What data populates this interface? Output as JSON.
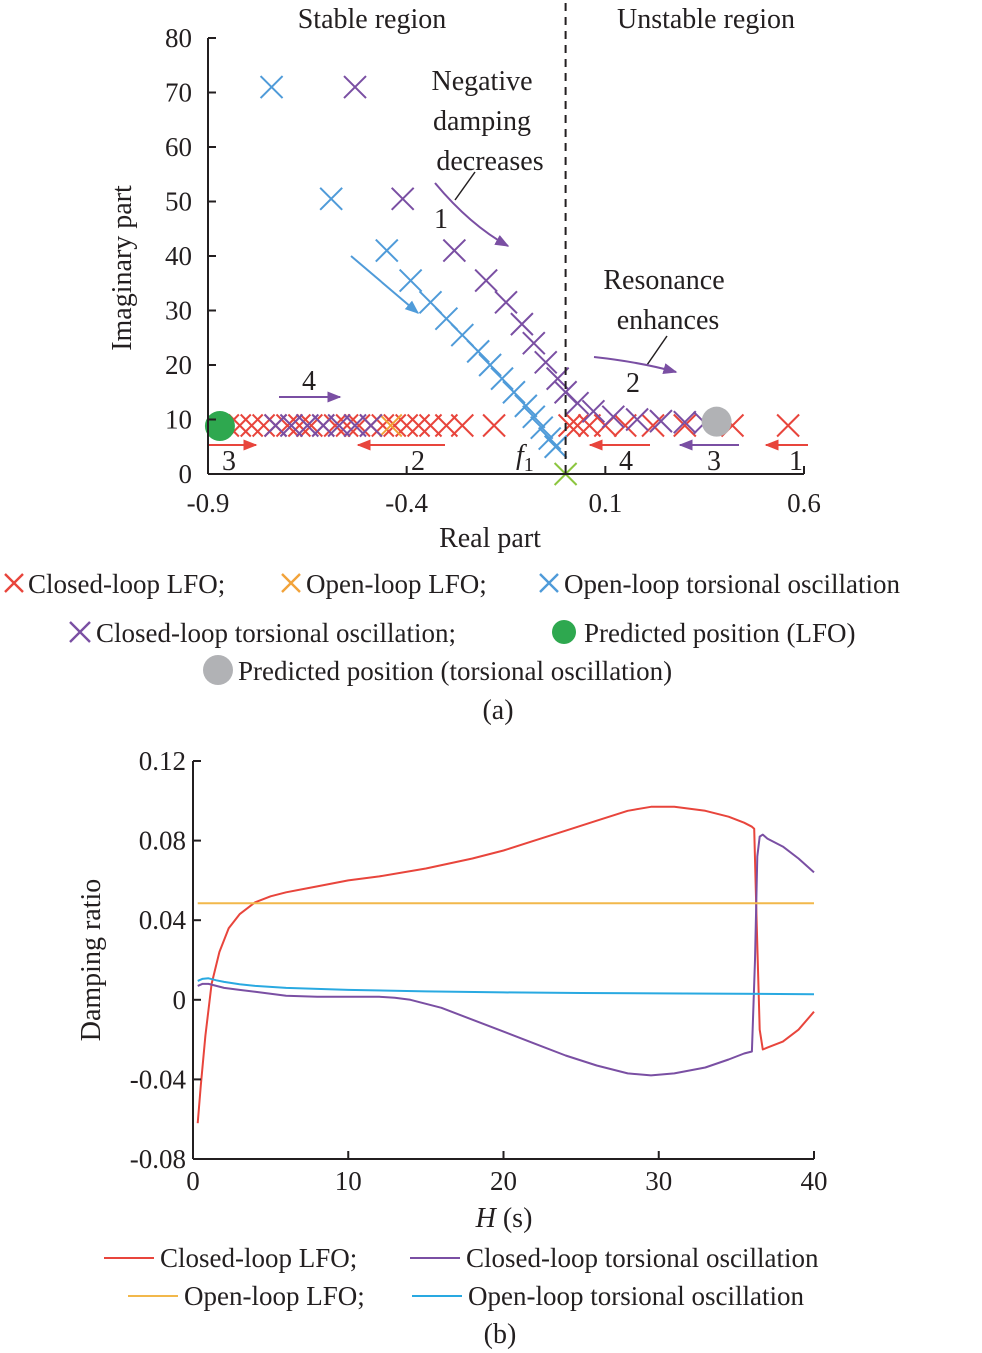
{
  "chart_data": [
    {
      "id": "a",
      "type": "scatter",
      "caption": "(a)",
      "xlabel": "Real part",
      "ylabel": "Imaginary part",
      "xlim": [
        -0.9,
        0.6
      ],
      "ylim": [
        0,
        80
      ],
      "xticks": [
        -0.9,
        -0.4,
        0.1,
        0.6
      ],
      "xtick_labels": [
        "-0.9",
        "-0.4",
        "0.1",
        "0.6"
      ],
      "yticks": [
        0,
        10,
        20,
        30,
        40,
        50,
        60,
        70,
        80
      ],
      "ytick_labels": [
        "0",
        "10",
        "20",
        "30",
        "40",
        "50",
        "60",
        "70",
        "80"
      ],
      "grid": false,
      "boundary_x": 0,
      "region_labels": {
        "stable": "Stable region",
        "unstable": "Unstable region"
      },
      "annotations": {
        "negative_damping": [
          "Negative",
          "damping",
          "decreases"
        ],
        "resonance": [
          "Resonance",
          "enhances"
        ],
        "f1_main": "f",
        "f1_sub": "1"
      },
      "arrow_numbers": {
        "purple_1": "1",
        "purple_2": "2",
        "purple_3": "3",
        "purple_4": "4",
        "red_1": "1",
        "red_2": "2",
        "red_3": "3",
        "red_4": "4"
      },
      "series": [
        {
          "name": "Closed-loop LFO",
          "marker": "x",
          "color": "#e8453c",
          "points": [
            [
              0.56,
              8.9
            ],
            [
              0.42,
              8.9
            ],
            [
              0.3,
              8.9
            ],
            [
              0.22,
              8.9
            ],
            [
              0.15,
              8.9
            ],
            [
              0.1,
              8.9
            ],
            [
              0.06,
              8.9
            ],
            [
              0.03,
              8.9
            ],
            [
              0.01,
              8.9
            ],
            [
              -0.18,
              8.9
            ],
            [
              -0.26,
              8.9
            ],
            [
              -0.3,
              8.9
            ],
            [
              -0.34,
              8.9
            ],
            [
              -0.37,
              8.9
            ],
            [
              -0.4,
              8.9
            ],
            [
              -0.43,
              8.9
            ],
            [
              -0.46,
              8.9
            ],
            [
              -0.49,
              8.9
            ],
            [
              -0.52,
              8.9
            ],
            [
              -0.55,
              8.9
            ],
            [
              -0.58,
              8.9
            ],
            [
              -0.61,
              8.9
            ],
            [
              -0.64,
              8.9
            ],
            [
              -0.67,
              8.9
            ],
            [
              -0.7,
              8.9
            ],
            [
              -0.73,
              8.9
            ],
            [
              -0.76,
              8.9
            ],
            [
              -0.79,
              8.9
            ],
            [
              -0.82,
              8.9
            ],
            [
              -0.85,
              8.9
            ]
          ]
        },
        {
          "name": "Open-loop LFO",
          "marker": "x",
          "color": "#f2a33a",
          "points": [
            [
              -0.44,
              8.9
            ]
          ]
        },
        {
          "name": "Open-loop torsional oscillation",
          "marker": "x",
          "color": "#4f9bd9",
          "points": [
            [
              -0.74,
              71
            ],
            [
              -0.59,
              50.5
            ],
            [
              -0.45,
              41
            ],
            [
              -0.39,
              35.5
            ],
            [
              -0.34,
              31.5
            ],
            [
              -0.3,
              28.5
            ],
            [
              -0.26,
              25.5
            ],
            [
              -0.22,
              22.5
            ],
            [
              -0.19,
              20
            ],
            [
              -0.16,
              17.5
            ],
            [
              -0.13,
              15
            ],
            [
              -0.1,
              12.5
            ],
            [
              -0.08,
              10.5
            ],
            [
              -0.06,
              8.5
            ],
            [
              -0.04,
              6.5
            ],
            [
              -0.025,
              5
            ]
          ]
        },
        {
          "name": "Closed-loop torsional oscillation",
          "marker": "x",
          "color": "#7a4fa3",
          "points": [
            [
              -0.53,
              71
            ],
            [
              -0.41,
              50.5
            ],
            [
              -0.28,
              41
            ],
            [
              -0.2,
              35.5
            ],
            [
              -0.15,
              31.5
            ],
            [
              -0.11,
              27.5
            ],
            [
              -0.08,
              24
            ],
            [
              -0.05,
              20.5
            ],
            [
              -0.02,
              17.5
            ],
            [
              0.0,
              15
            ],
            [
              0.03,
              13
            ],
            [
              0.07,
              11.5
            ],
            [
              0.12,
              10.5
            ],
            [
              0.18,
              10
            ],
            [
              0.24,
              9.7
            ],
            [
              0.3,
              9.5
            ],
            [
              0.35,
              9.4
            ],
            [
              -0.49,
              8.9
            ],
            [
              -0.53,
              8.9
            ],
            [
              -0.57,
              8.9
            ],
            [
              -0.61,
              8.9
            ],
            [
              -0.65,
              8.9
            ],
            [
              -0.69,
              8.9
            ],
            [
              -0.73,
              8.9
            ]
          ]
        },
        {
          "name": "Predicted position (LFO)",
          "marker": "circle",
          "color": "#2ea84f",
          "points": [
            [
              -0.87,
              8.8
            ]
          ]
        },
        {
          "name": "Predicted position (torsional oscillation)",
          "marker": "circle",
          "color": "#b1b2b5",
          "points": [
            [
              0.38,
              9.6
            ]
          ]
        },
        {
          "name": "",
          "marker": "x",
          "color": "#8cc63f",
          "points": [
            [
              0,
              0
            ]
          ]
        }
      ],
      "legend_rows": [
        [
          "Closed-loop LFO;",
          "Open-loop LFO;",
          "Open-loop torsional oscillation"
        ],
        [
          "Closed-loop torsional oscillation;",
          "Predicted position (LFO)"
        ],
        [
          "Predicted position (torsional oscillation)"
        ]
      ]
    },
    {
      "id": "b",
      "type": "line",
      "caption": "(b)",
      "xlabel_main": "H",
      "xlabel_unit": " (s)",
      "ylabel": "Damping ratio",
      "xlim": [
        0,
        40
      ],
      "ylim": [
        -0.08,
        0.12
      ],
      "xticks": [
        0,
        10,
        20,
        30,
        40
      ],
      "xtick_labels": [
        "0",
        "10",
        "20",
        "30",
        "40"
      ],
      "yticks": [
        -0.08,
        -0.04,
        0,
        0.04,
        0.08,
        0.12
      ],
      "ytick_labels": [
        "-0.08",
        "-0.04",
        "0",
        "0.04",
        "0.08",
        "0.12"
      ],
      "grid": false,
      "series": [
        {
          "name": "Closed-loop LFO",
          "color": "#e8453c",
          "x": [
            0.3,
            0.5,
            0.8,
            1.2,
            1.7,
            2.3,
            3,
            4,
            5,
            6,
            8,
            10,
            12,
            15,
            18,
            20,
            22,
            24,
            26,
            28,
            29.5,
            31,
            33,
            34.5,
            35.5,
            36,
            36.15,
            36.3,
            36.5,
            36.7,
            37,
            38,
            39,
            40
          ],
          "y": [
            -0.062,
            -0.043,
            -0.018,
            0.008,
            0.024,
            0.036,
            0.043,
            0.049,
            0.052,
            0.054,
            0.057,
            0.06,
            0.062,
            0.066,
            0.071,
            0.075,
            0.08,
            0.085,
            0.09,
            0.095,
            0.097,
            0.097,
            0.095,
            0.092,
            0.089,
            0.087,
            0.086,
            0.04,
            -0.015,
            -0.025,
            -0.024,
            -0.021,
            -0.015,
            -0.006
          ]
        },
        {
          "name": "Closed-loop torsional oscillation",
          "color": "#7a4fa3",
          "x": [
            0.3,
            0.6,
            1,
            1.5,
            2,
            3,
            4,
            5,
            6,
            8,
            10,
            12,
            13,
            14,
            16,
            18,
            20,
            22,
            24,
            26,
            28,
            29.5,
            31,
            33,
            34.5,
            35.5,
            36,
            36.2,
            36.35,
            36.5,
            36.7,
            37,
            38,
            39,
            40
          ],
          "y": [
            0.007,
            0.008,
            0.008,
            0.007,
            0.006,
            0.005,
            0.004,
            0.003,
            0.002,
            0.0015,
            0.0015,
            0.0015,
            0.001,
            0,
            -0.004,
            -0.01,
            -0.016,
            -0.022,
            -0.028,
            -0.033,
            -0.037,
            -0.038,
            -0.037,
            -0.034,
            -0.03,
            -0.027,
            -0.026,
            0.02,
            0.072,
            0.082,
            0.083,
            0.081,
            0.077,
            0.071,
            0.064
          ]
        },
        {
          "name": "Open-loop LFO",
          "color": "#f2b84b",
          "x": [
            0.3,
            40
          ],
          "y": [
            0.0485,
            0.0485
          ]
        },
        {
          "name": "Open-loop torsional oscillation",
          "color": "#29a9e1",
          "x": [
            0.3,
            0.6,
            1,
            1.5,
            2,
            3,
            4,
            6,
            8,
            10,
            15,
            20,
            25,
            30,
            35,
            40
          ],
          "y": [
            0.0095,
            0.0105,
            0.0108,
            0.0098,
            0.009,
            0.0078,
            0.007,
            0.006,
            0.0055,
            0.005,
            0.0042,
            0.0037,
            0.0034,
            0.0032,
            0.003,
            0.0028
          ]
        }
      ],
      "legend_rows": [
        [
          "Closed-loop LFO;",
          "Closed-loop torsional oscillation"
        ],
        [
          "Open-loop LFO;",
          "Open-loop torsional oscillation"
        ]
      ]
    }
  ]
}
